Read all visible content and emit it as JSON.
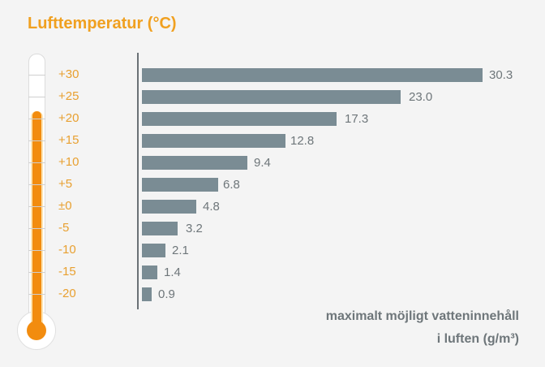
{
  "title": "Lufttemperatur (°C)",
  "unit_label": {
    "line1": "maximalt möjligt vatteninnehåll",
    "line2": "i luften (g/m³)"
  },
  "colors": {
    "accent": "#f0a020",
    "thermometer_fill": "#f28c0f",
    "bar": "#7a8c94",
    "value_text": "#6e767a"
  },
  "chart_data": {
    "type": "bar",
    "orientation": "horizontal",
    "title": "Lufttemperatur (°C)",
    "xlabel": "maximalt möjligt vatteninnehåll i luften (g/m³)",
    "ylabel": "Lufttemperatur (°C)",
    "categories": [
      "+30",
      "+25",
      "+20",
      "+15",
      "+10",
      "+5",
      "±0",
      "-5",
      "-10",
      "-15",
      "-20"
    ],
    "values": [
      30.3,
      23.0,
      17.3,
      12.8,
      9.4,
      6.8,
      4.8,
      3.2,
      2.1,
      1.4,
      0.9
    ],
    "value_labels": [
      "30.3",
      "23.0",
      "17.3",
      "12.8",
      "9.4",
      "6.8",
      "4.8",
      "3.2",
      "2.1",
      "1.4",
      "0.9"
    ],
    "xlim": [
      0,
      31
    ],
    "grid": false,
    "legend": null
  }
}
